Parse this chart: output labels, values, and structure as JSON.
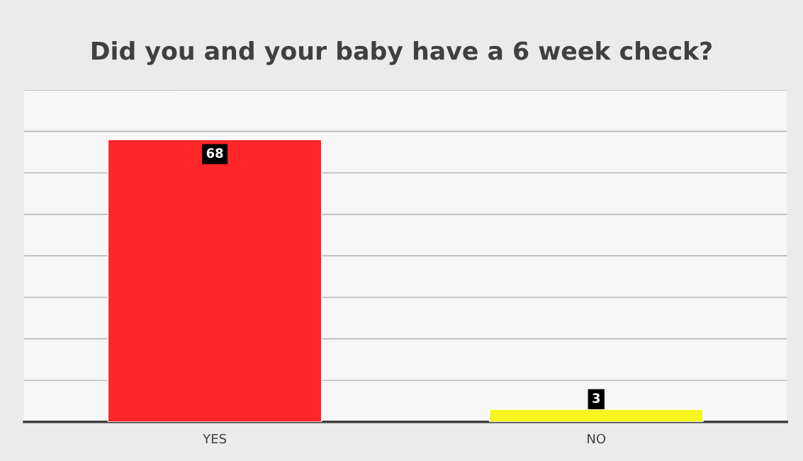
{
  "chart_data": {
    "type": "bar",
    "title": "Did you and your baby have a 6 week check?",
    "categories": [
      "YES",
      "NO"
    ],
    "values": [
      68,
      3
    ],
    "colors": [
      "#ff2528",
      "#f5f51f"
    ],
    "ylim": [
      0,
      80
    ],
    "yticks": [
      {
        "value": 0,
        "label": null
      },
      {
        "value": 10,
        "label": null
      },
      {
        "value": 20,
        "label": null
      },
      {
        "value": 30,
        "label": null
      },
      {
        "value": 40,
        "label": null
      },
      {
        "value": 50,
        "label": null
      },
      {
        "value": 60,
        "label": null
      },
      {
        "value": 70,
        "label": null
      },
      {
        "value": 80,
        "label": null
      }
    ],
    "tick_labels": "x",
    "grid": "y",
    "data_labels": true
  }
}
